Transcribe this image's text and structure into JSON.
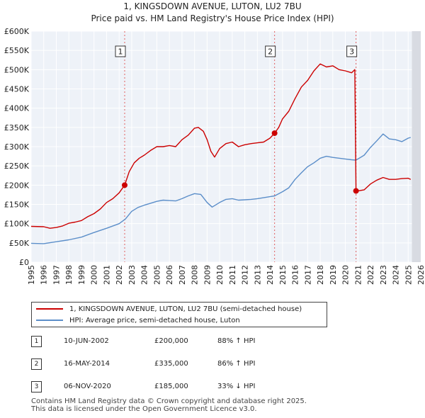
{
  "header": {
    "title": "1, KINGSDOWN AVENUE, LUTON, LU2 7BU",
    "subtitle": "Price paid vs. HM Land Registry's House Price Index (HPI)"
  },
  "chart_data": {
    "type": "line",
    "title": "1, KINGSDOWN AVENUE, LUTON, LU2 7BU",
    "subtitle": "Price paid vs. HM Land Registry's House Price Index (HPI)",
    "xlabel": "",
    "ylabel": "",
    "xlim": [
      1995,
      2026
    ],
    "ylim": [
      0,
      600000
    ],
    "grid": true,
    "x_ticks": [
      "1995",
      "1996",
      "1997",
      "1998",
      "1999",
      "2000",
      "2001",
      "2002",
      "2003",
      "2004",
      "2005",
      "2006",
      "2007",
      "2008",
      "2009",
      "2010",
      "2011",
      "2012",
      "2013",
      "2014",
      "2015",
      "2016",
      "2017",
      "2018",
      "2019",
      "2020",
      "2021",
      "2022",
      "2023",
      "2024",
      "2025",
      "2026"
    ],
    "y_ticks": [
      {
        "value": 0,
        "label": "£0"
      },
      {
        "value": 50000,
        "label": "£50K"
      },
      {
        "value": 100000,
        "label": "£100K"
      },
      {
        "value": 150000,
        "label": "£150K"
      },
      {
        "value": 200000,
        "label": "£200K"
      },
      {
        "value": 250000,
        "label": "£250K"
      },
      {
        "value": 300000,
        "label": "£300K"
      },
      {
        "value": 350000,
        "label": "£350K"
      },
      {
        "value": 400000,
        "label": "£400K"
      },
      {
        "value": 450000,
        "label": "£450K"
      },
      {
        "value": 500000,
        "label": "£500K"
      },
      {
        "value": 550000,
        "label": "£550K"
      },
      {
        "value": 600000,
        "label": "£600K"
      }
    ],
    "series": [
      {
        "name": "1, KINGSDOWN AVENUE, LUTON, LU2 7BU (semi-detached house)",
        "color": "#cc0000",
        "points": [
          [
            1995.0,
            93000
          ],
          [
            1996.0,
            92000
          ],
          [
            1996.5,
            88000
          ],
          [
            1997.0,
            90000
          ],
          [
            1997.5,
            94000
          ],
          [
            1998.0,
            101000
          ],
          [
            1998.5,
            104000
          ],
          [
            1999.0,
            108000
          ],
          [
            1999.5,
            118000
          ],
          [
            2000.0,
            126000
          ],
          [
            2000.5,
            138000
          ],
          [
            2001.0,
            155000
          ],
          [
            2001.5,
            165000
          ],
          [
            2002.0,
            180000
          ],
          [
            2002.44,
            200000
          ],
          [
            2002.8,
            235000
          ],
          [
            2003.2,
            258000
          ],
          [
            2003.6,
            270000
          ],
          [
            2004.0,
            278000
          ],
          [
            2004.5,
            290000
          ],
          [
            2005.0,
            300000
          ],
          [
            2005.5,
            300000
          ],
          [
            2006.0,
            303000
          ],
          [
            2006.5,
            300000
          ],
          [
            2007.0,
            318000
          ],
          [
            2007.5,
            330000
          ],
          [
            2008.0,
            348000
          ],
          [
            2008.3,
            350000
          ],
          [
            2008.7,
            340000
          ],
          [
            2009.0,
            318000
          ],
          [
            2009.3,
            288000
          ],
          [
            2009.6,
            273000
          ],
          [
            2010.0,
            295000
          ],
          [
            2010.5,
            308000
          ],
          [
            2011.0,
            312000
          ],
          [
            2011.5,
            300000
          ],
          [
            2012.0,
            305000
          ],
          [
            2012.5,
            308000
          ],
          [
            2013.0,
            310000
          ],
          [
            2013.5,
            312000
          ],
          [
            2014.0,
            322000
          ],
          [
            2014.37,
            335000
          ],
          [
            2014.7,
            350000
          ],
          [
            2015.0,
            372000
          ],
          [
            2015.5,
            392000
          ],
          [
            2016.0,
            425000
          ],
          [
            2016.5,
            455000
          ],
          [
            2017.0,
            472000
          ],
          [
            2017.5,
            497000
          ],
          [
            2018.0,
            515000
          ],
          [
            2018.5,
            507000
          ],
          [
            2019.0,
            510000
          ],
          [
            2019.5,
            500000
          ],
          [
            2020.0,
            497000
          ],
          [
            2020.5,
            492000
          ],
          [
            2020.75,
            500000
          ],
          [
            2020.85,
            185000
          ],
          [
            2021.0,
            185000
          ],
          [
            2021.5,
            188000
          ],
          [
            2022.0,
            203000
          ],
          [
            2022.5,
            213000
          ],
          [
            2023.0,
            220000
          ],
          [
            2023.5,
            215000
          ],
          [
            2024.0,
            215000
          ],
          [
            2024.5,
            217000
          ],
          [
            2025.0,
            218000
          ],
          [
            2025.2,
            215000
          ]
        ]
      },
      {
        "name": "HPI: Average price, semi-detached house, Luton",
        "color": "#5b8ec9",
        "points": [
          [
            1995.0,
            49000
          ],
          [
            1996.0,
            48000
          ],
          [
            1997.0,
            53000
          ],
          [
            1998.0,
            58000
          ],
          [
            1999.0,
            65000
          ],
          [
            2000.0,
            77000
          ],
          [
            2001.0,
            88000
          ],
          [
            2002.0,
            100000
          ],
          [
            2002.5,
            112000
          ],
          [
            2003.0,
            132000
          ],
          [
            2003.5,
            142000
          ],
          [
            2004.0,
            148000
          ],
          [
            2004.5,
            153000
          ],
          [
            2005.0,
            158000
          ],
          [
            2005.5,
            161000
          ],
          [
            2006.0,
            160000
          ],
          [
            2006.5,
            159000
          ],
          [
            2007.0,
            165000
          ],
          [
            2007.5,
            172000
          ],
          [
            2008.0,
            178000
          ],
          [
            2008.5,
            176000
          ],
          [
            2009.0,
            155000
          ],
          [
            2009.4,
            143000
          ],
          [
            2010.0,
            155000
          ],
          [
            2010.5,
            163000
          ],
          [
            2011.0,
            165000
          ],
          [
            2011.5,
            161000
          ],
          [
            2012.0,
            162000
          ],
          [
            2012.5,
            163000
          ],
          [
            2013.0,
            165000
          ],
          [
            2014.0,
            170000
          ],
          [
            2014.37,
            172000
          ],
          [
            2015.0,
            183000
          ],
          [
            2015.5,
            193000
          ],
          [
            2016.0,
            215000
          ],
          [
            2016.5,
            232000
          ],
          [
            2017.0,
            248000
          ],
          [
            2017.5,
            258000
          ],
          [
            2018.0,
            270000
          ],
          [
            2018.5,
            275000
          ],
          [
            2019.0,
            272000
          ],
          [
            2019.5,
            270000
          ],
          [
            2020.0,
            268000
          ],
          [
            2020.5,
            266000
          ],
          [
            2020.85,
            265000
          ],
          [
            2021.0,
            268000
          ],
          [
            2021.5,
            278000
          ],
          [
            2022.0,
            298000
          ],
          [
            2022.5,
            315000
          ],
          [
            2023.0,
            333000
          ],
          [
            2023.5,
            320000
          ],
          [
            2024.0,
            318000
          ],
          [
            2024.5,
            313000
          ],
          [
            2025.0,
            322000
          ],
          [
            2025.2,
            324000
          ]
        ]
      }
    ],
    "markers": [
      {
        "id": "1",
        "x": 2002.44,
        "y": 200000
      },
      {
        "id": "2",
        "x": 2014.37,
        "y": 335000
      },
      {
        "id": "3",
        "x": 2020.85,
        "y": 185000
      }
    ],
    "projection_start": 2025.3
  },
  "legend": {
    "property_label": "1, KINGSDOWN AVENUE, LUTON, LU2 7BU (semi-detached house)",
    "hpi_label": "HPI: Average price, semi-detached house, Luton"
  },
  "sales": [
    {
      "id": "1",
      "date": "10-JUN-2002",
      "price": "£200,000",
      "hpi": "88% ↑ HPI"
    },
    {
      "id": "2",
      "date": "16-MAY-2014",
      "price": "£335,000",
      "hpi": "86% ↑ HPI"
    },
    {
      "id": "3",
      "date": "06-NOV-2020",
      "price": "£185,000",
      "hpi": "33% ↓ HPI"
    }
  ],
  "footer": {
    "line1": "Contains HM Land Registry data © Crown copyright and database right 2025.",
    "line2": "This data is licensed under the Open Government Licence v3.0."
  }
}
